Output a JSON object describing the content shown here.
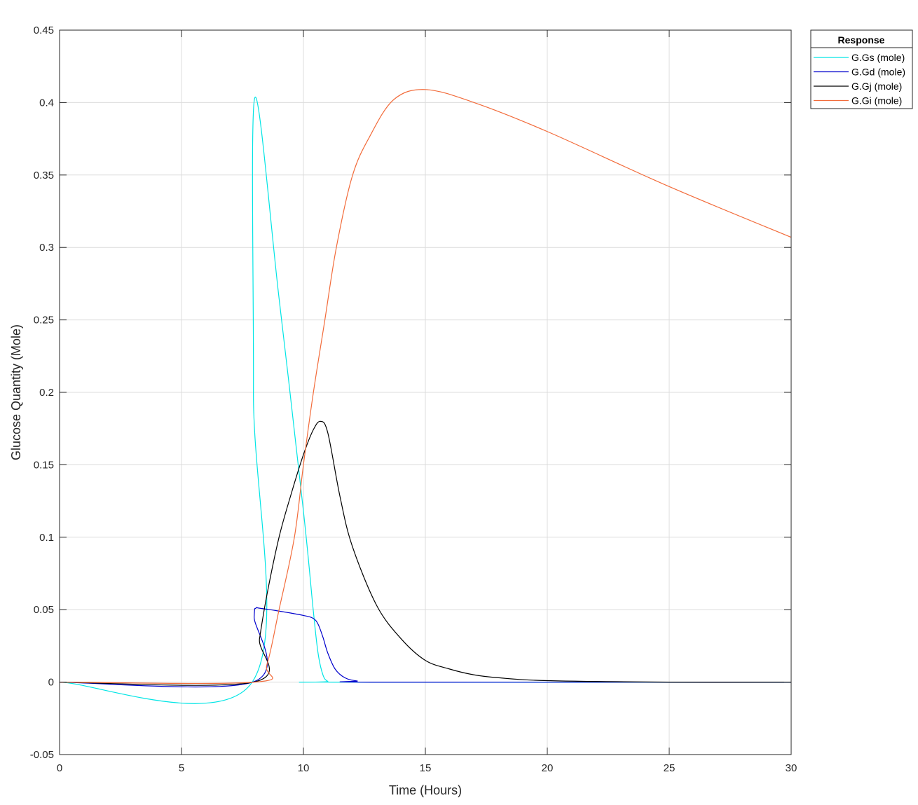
{
  "chart_data": {
    "type": "line",
    "title": "",
    "xlabel": "Time (Hours)",
    "ylabel": "Glucose Quantity (Mole)",
    "xlim": [
      0,
      30
    ],
    "ylim": [
      -0.05,
      0.45
    ],
    "xticks": [
      "0",
      "5",
      "10",
      "15",
      "20",
      "25",
      "30"
    ],
    "yticks": [
      "-0.05",
      "0",
      "0.05",
      "0.1",
      "0.15",
      "0.2",
      "0.25",
      "0.3",
      "0.35",
      "0.4",
      "0.45"
    ],
    "grid": true,
    "legend": {
      "title": "Response",
      "placement": "outside-top-right"
    },
    "series": [
      {
        "name": "G.Gs (mole)",
        "color": "#00e5e5",
        "x": [
          0,
          7.9,
          7.95,
          8.0,
          9.0,
          10.0,
          10.4,
          10.6,
          10.8,
          11.0,
          11.3,
          30
        ],
        "y": [
          0,
          0,
          0.2,
          0.403,
          0.265,
          0.118,
          0.05,
          0.02,
          0.005,
          0.0005,
          0,
          0
        ]
      },
      {
        "name": "G.Gd (mole)",
        "color": "#0000cc",
        "x": [
          0,
          7.92,
          7.98,
          8.05,
          8.2,
          9,
          10,
          10.4,
          10.6,
          10.8,
          11.0,
          11.3,
          11.7,
          12.2,
          13,
          30
        ],
        "y": [
          0,
          0,
          0.045,
          0.051,
          0.051,
          0.049,
          0.046,
          0.044,
          0.04,
          0.031,
          0.02,
          0.009,
          0.003,
          0.0008,
          0,
          0
        ]
      },
      {
        "name": "G.Gj (mole)",
        "color": "#000000",
        "x": [
          0,
          7.95,
          8.2,
          8.5,
          9,
          9.5,
          10,
          10.4,
          10.7,
          11,
          11.5,
          12,
          13,
          14,
          15,
          16,
          17,
          18,
          20,
          25,
          30
        ],
        "y": [
          0,
          0,
          0.03,
          0.06,
          0.1,
          0.13,
          0.157,
          0.174,
          0.18,
          0.172,
          0.128,
          0.094,
          0.053,
          0.03,
          0.015,
          0.009,
          0.005,
          0.003,
          0.001,
          0,
          0
        ]
      },
      {
        "name": "G.Gi (mole)",
        "color": "#f26b3a",
        "x": [
          0,
          8.0,
          8.5,
          9.0,
          9.63,
          10.0,
          10.4,
          10.87,
          11.35,
          12.0,
          12.7,
          13.7,
          15,
          17,
          20,
          25,
          30
        ],
        "y": [
          0,
          0,
          0.012,
          0.05,
          0.1,
          0.15,
          0.199,
          0.249,
          0.3,
          0.349,
          0.376,
          0.402,
          0.409,
          0.4,
          0.38,
          0.342,
          0.307
        ]
      }
    ]
  }
}
